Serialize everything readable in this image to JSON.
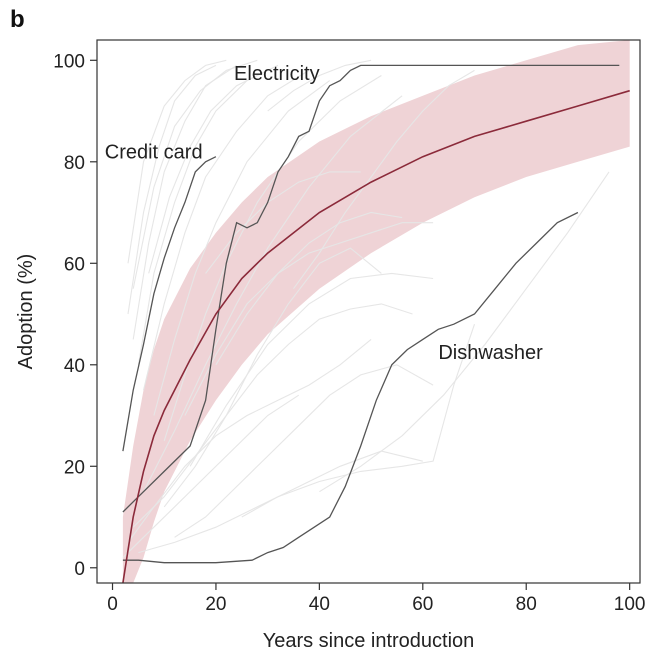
{
  "panel_label": "b",
  "chart_data": {
    "type": "line",
    "title": "",
    "xlabel": "Years since introduction",
    "ylabel": "Adoption (%)",
    "xlim": [
      -3,
      102
    ],
    "ylim": [
      -3,
      104
    ],
    "x_ticks": [
      0,
      20,
      40,
      60,
      80,
      100
    ],
    "y_ticks": [
      0,
      20,
      40,
      60,
      80,
      100
    ],
    "grid": false,
    "colors": {
      "fit_line": "#8b2a3a",
      "fit_band": "#efd3d6",
      "highlight": "#555555",
      "background_series": "#e6e6e6"
    },
    "fit": {
      "name": "",
      "x": [
        2,
        4,
        6,
        8,
        10,
        15,
        20,
        25,
        30,
        40,
        50,
        60,
        70,
        80,
        90,
        100
      ],
      "y": [
        -3,
        10,
        19,
        26,
        31,
        41,
        50,
        57,
        62,
        70,
        76,
        81,
        85,
        88,
        91,
        94
      ],
      "lower": [
        -3,
        -3,
        2,
        9,
        15,
        25,
        33,
        40,
        46,
        55,
        62,
        68,
        73,
        77,
        80,
        83
      ],
      "upper": [
        10,
        24,
        35,
        43,
        49,
        59,
        66,
        72,
        77,
        84,
        89,
        93,
        97,
        100,
        103,
        104
      ]
    },
    "highlighted_series": [
      {
        "name": "Electricity",
        "x": [
          2,
          5,
          10,
          15,
          18,
          20,
          22,
          24,
          26,
          28,
          30,
          32,
          34,
          36,
          38,
          40,
          42,
          44,
          46,
          48,
          50,
          60,
          70,
          80,
          90,
          98
        ],
        "y": [
          11,
          14,
          19,
          24,
          33,
          47,
          60,
          68,
          67,
          68,
          72,
          78,
          81,
          85,
          86,
          92,
          95,
          96,
          98,
          99,
          99,
          99,
          99,
          99,
          99,
          99
        ]
      },
      {
        "name": "Credit card",
        "x": [
          2,
          4,
          6,
          8,
          10,
          12,
          14,
          16,
          18,
          20
        ],
        "y": [
          23,
          35,
          44,
          54,
          61,
          67,
          72,
          78,
          80,
          81
        ]
      },
      {
        "name": "Dishwasher",
        "x": [
          2,
          5,
          10,
          15,
          20,
          27,
          30,
          33,
          36,
          39,
          42,
          45,
          48,
          51,
          54,
          57,
          60,
          63,
          66,
          70,
          74,
          78,
          82,
          86,
          90
        ],
        "y": [
          1.5,
          1.5,
          1,
          1,
          1,
          1.5,
          3,
          4,
          6,
          8,
          10,
          16,
          24,
          33,
          40,
          43,
          45,
          47,
          48,
          50,
          55,
          60,
          64,
          68,
          70
        ]
      }
    ],
    "background_series": [
      {
        "x": [
          3,
          6,
          9,
          12,
          16,
          20
        ],
        "y": [
          50,
          70,
          83,
          92,
          97,
          99
        ]
      },
      {
        "x": [
          4,
          7,
          10,
          14,
          18,
          24
        ],
        "y": [
          45,
          64,
          78,
          88,
          95,
          99
        ]
      },
      {
        "x": [
          5,
          8,
          12,
          16,
          20,
          26,
          32
        ],
        "y": [
          40,
          58,
          72,
          83,
          90,
          96,
          99
        ]
      },
      {
        "x": [
          6,
          10,
          14,
          18,
          24,
          30,
          38
        ],
        "y": [
          35,
          52,
          66,
          77,
          86,
          93,
          98
        ]
      },
      {
        "x": [
          3,
          6,
          10,
          14,
          18,
          22
        ],
        "y": [
          60,
          80,
          91,
          96,
          99,
          100
        ]
      },
      {
        "x": [
          8,
          12,
          16,
          20,
          26,
          34,
          42
        ],
        "y": [
          30,
          45,
          58,
          68,
          80,
          90,
          96
        ]
      },
      {
        "x": [
          10,
          14,
          18,
          22,
          28,
          36,
          44,
          52
        ],
        "y": [
          25,
          38,
          50,
          60,
          72,
          84,
          92,
          97
        ]
      },
      {
        "x": [
          4,
          8,
          12,
          17,
          22,
          28
        ],
        "y": [
          55,
          75,
          87,
          94,
          98,
          100
        ]
      },
      {
        "x": [
          6,
          12,
          18,
          24,
          30,
          38,
          46,
          56
        ],
        "y": [
          15,
          27,
          40,
          52,
          63,
          75,
          85,
          93
        ]
      },
      {
        "x": [
          10,
          16,
          22,
          28,
          34,
          40,
          46,
          52
        ],
        "y": [
          12,
          20,
          30,
          42,
          52,
          60,
          63,
          58
        ]
      },
      {
        "x": [
          12,
          18,
          24,
          30,
          36,
          42,
          48,
          55,
          62
        ],
        "y": [
          6,
          10,
          16,
          22,
          28,
          34,
          38,
          40,
          36
        ]
      },
      {
        "x": [
          5,
          12,
          20,
          28,
          36,
          44,
          52,
          60
        ],
        "y": [
          3,
          5,
          8,
          12,
          16,
          20,
          23,
          21
        ]
      },
      {
        "x": [
          4,
          10,
          16,
          22,
          28,
          34,
          40,
          46,
          52,
          58
        ],
        "y": [
          8,
          14,
          22,
          30,
          38,
          44,
          49,
          51,
          52,
          50
        ]
      },
      {
        "x": [
          15,
          22,
          30,
          38,
          46,
          54,
          62
        ],
        "y": [
          20,
          32,
          44,
          52,
          57,
          58,
          57
        ]
      },
      {
        "x": [
          3,
          8,
          14,
          20,
          26,
          32,
          38,
          44,
          50
        ],
        "y": [
          5,
          12,
          20,
          26,
          30,
          33,
          36,
          40,
          45
        ]
      },
      {
        "x": [
          20,
          26,
          32,
          38,
          44,
          50,
          56
        ],
        "y": [
          40,
          50,
          58,
          64,
          68,
          70,
          69
        ]
      },
      {
        "x": [
          25,
          32,
          40,
          48,
          56,
          62,
          66,
          70
        ],
        "y": [
          10,
          14,
          17,
          19,
          20,
          21,
          36,
          48
        ]
      },
      {
        "x": [
          35,
          40,
          45,
          50,
          55,
          60,
          65,
          70
        ],
        "y": [
          55,
          62,
          70,
          77,
          84,
          90,
          95,
          98
        ]
      },
      {
        "x": [
          30,
          35,
          40,
          45,
          50
        ],
        "y": [
          90,
          94,
          97,
          99,
          100
        ]
      },
      {
        "x": [
          7,
          11,
          15,
          19,
          24,
          30
        ],
        "y": [
          58,
          73,
          83,
          90,
          95,
          98
        ]
      },
      {
        "x": [
          2,
          6,
          12,
          18,
          24,
          30,
          36
        ],
        "y": [
          2,
          6,
          12,
          18,
          24,
          30,
          34
        ]
      },
      {
        "x": [
          18,
          24,
          30,
          36,
          42,
          48
        ],
        "y": [
          58,
          66,
          72,
          76,
          78,
          78
        ]
      },
      {
        "x": [
          40,
          48,
          56,
          64,
          72,
          80,
          88,
          96
        ],
        "y": [
          15,
          20,
          26,
          34,
          44,
          55,
          66,
          78
        ]
      },
      {
        "x": [
          14,
          20,
          26,
          32,
          38,
          44,
          50,
          56,
          62
        ],
        "y": [
          30,
          42,
          52,
          58,
          62,
          64,
          66,
          68,
          68
        ]
      }
    ],
    "annotations": [
      {
        "text": "Electricity",
        "x": 23.5,
        "y": 97.5
      },
      {
        "text": "Credit card",
        "x": -1.5,
        "y": 82
      },
      {
        "text": "Dishwasher",
        "x": 63,
        "y": 42.5
      }
    ]
  }
}
